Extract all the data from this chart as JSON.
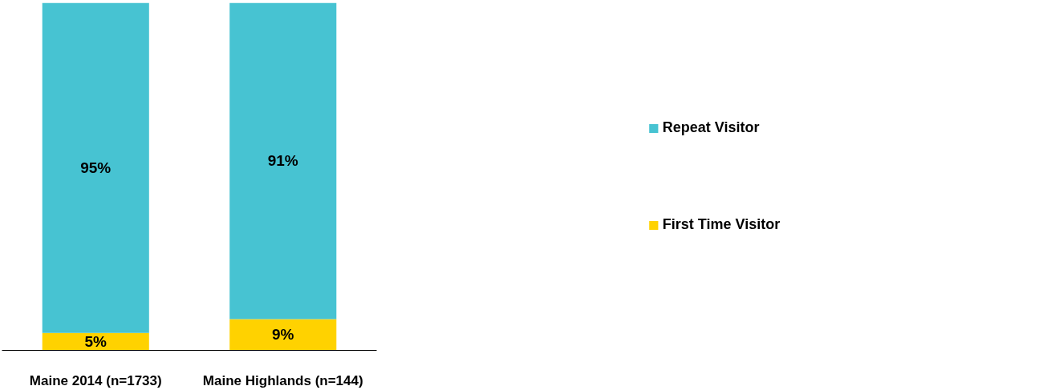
{
  "chart_data": {
    "type": "bar",
    "stacked": true,
    "categories": [
      "Maine 2014 (n=1733)",
      "Maine Highlands (n=144)"
    ],
    "series": [
      {
        "name": "First Time Visitor",
        "color": "#ffd200",
        "values": [
          5,
          9
        ],
        "value_labels": [
          "5%",
          "9%"
        ]
      },
      {
        "name": "Repeat Visitor",
        "color": "#47c3d2",
        "values": [
          95,
          91
        ],
        "value_labels": [
          "95%",
          "91%"
        ]
      }
    ],
    "legend": "right",
    "grid": false
  }
}
